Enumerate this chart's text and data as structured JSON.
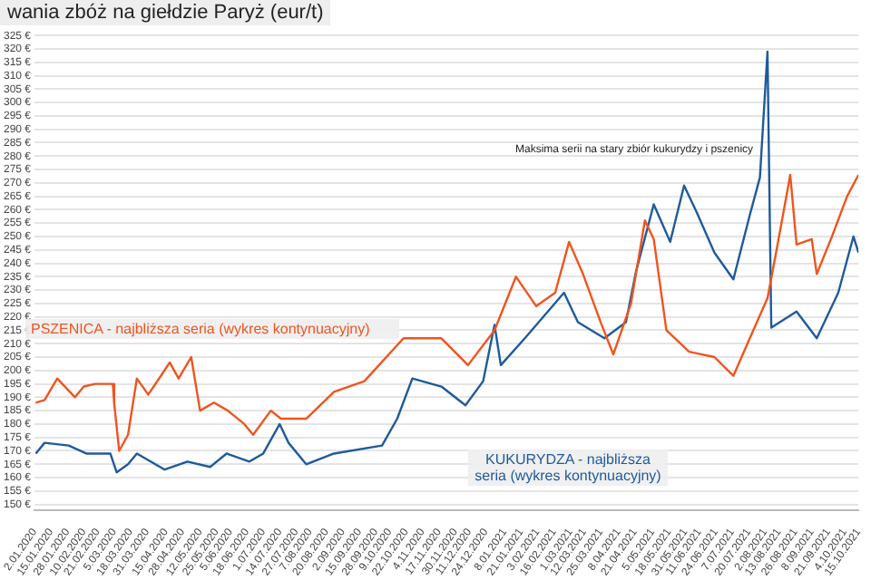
{
  "chart_data": {
    "type": "line",
    "title": "wania zbóż na giełdzie Paryż (eur/t)",
    "xlim": [
      "2020-01-02",
      "2021-10-15"
    ],
    "xticks": [
      {
        "value": "2020-01-02",
        "label": "2.01.2020"
      },
      {
        "value": "2020-01-15",
        "label": "15.01.2020"
      },
      {
        "value": "2020-01-28",
        "label": "28.01.2020"
      },
      {
        "value": "2020-02-10",
        "label": "10.02.2020"
      },
      {
        "value": "2020-02-21",
        "label": "21.02.2020"
      },
      {
        "value": "2020-03-05",
        "label": "5.03.2020"
      },
      {
        "value": "2020-03-18",
        "label": "18.03.2020"
      },
      {
        "value": "2020-03-31",
        "label": "31.03.2020"
      },
      {
        "value": "2020-04-15",
        "label": "15.04.2020"
      },
      {
        "value": "2020-04-28",
        "label": "28.04.2020"
      },
      {
        "value": "2020-05-12",
        "label": "12.05.2020"
      },
      {
        "value": "2020-05-25",
        "label": "25.05.2020"
      },
      {
        "value": "2020-06-05",
        "label": "5.06.2020"
      },
      {
        "value": "2020-06-18",
        "label": "18.06.2020"
      },
      {
        "value": "2020-07-01",
        "label": "1.07.2020"
      },
      {
        "value": "2020-07-14",
        "label": "14.07.2020"
      },
      {
        "value": "2020-07-27",
        "label": "27.07.2020"
      },
      {
        "value": "2020-08-07",
        "label": "7.08.2020"
      },
      {
        "value": "2020-08-20",
        "label": "20.08.2020"
      },
      {
        "value": "2020-09-02",
        "label": "2.09.2020"
      },
      {
        "value": "2020-09-15",
        "label": "15.09.2020"
      },
      {
        "value": "2020-09-28",
        "label": "28.09.2020"
      },
      {
        "value": "2020-10-09",
        "label": "9.10.2020"
      },
      {
        "value": "2020-10-22",
        "label": "22.10.2020"
      },
      {
        "value": "2020-11-04",
        "label": "4.11.2020"
      },
      {
        "value": "2020-11-17",
        "label": "17.11.2020"
      },
      {
        "value": "2020-11-30",
        "label": "30.11.2020"
      },
      {
        "value": "2020-12-11",
        "label": "11.12.2020"
      },
      {
        "value": "2020-12-24",
        "label": "24.12.2020"
      },
      {
        "value": "2021-01-08",
        "label": "8.01.2021"
      },
      {
        "value": "2021-01-21",
        "label": "21.01.2021"
      },
      {
        "value": "2021-02-03",
        "label": "3.02.2021"
      },
      {
        "value": "2021-02-16",
        "label": "16.02.2021"
      },
      {
        "value": "2021-03-01",
        "label": "1.03.2021"
      },
      {
        "value": "2021-03-12",
        "label": "12.03.2021"
      },
      {
        "value": "2021-03-25",
        "label": "25.03.2021"
      },
      {
        "value": "2021-04-08",
        "label": "8.04.2021"
      },
      {
        "value": "2021-04-21",
        "label": "21.04.2021"
      },
      {
        "value": "2021-05-05",
        "label": "5.05.2021"
      },
      {
        "value": "2021-05-18",
        "label": "18.05.2021"
      },
      {
        "value": "2021-05-31",
        "label": "31.05.2021"
      },
      {
        "value": "2021-06-11",
        "label": "11.06.2021"
      },
      {
        "value": "2021-06-24",
        "label": "24.06.2021"
      },
      {
        "value": "2021-07-07",
        "label": "7.07.2021"
      },
      {
        "value": "2021-07-20",
        "label": "20.07.2021"
      },
      {
        "value": "2021-08-02",
        "label": "2.08.2021"
      },
      {
        "value": "2021-08-13",
        "label": "13.08.2021"
      },
      {
        "value": "2021-08-26",
        "label": "26.08.2021"
      },
      {
        "value": "2021-09-08",
        "label": "8.09.2021"
      },
      {
        "value": "2021-09-21",
        "label": "21.09.2021"
      },
      {
        "value": "2021-10-04",
        "label": "4.10.2021"
      },
      {
        "value": "2021-10-15",
        "label": "15.10.2021"
      }
    ],
    "ylim": [
      148,
      325
    ],
    "yticks": [
      {
        "value": 150,
        "label": "150 €"
      },
      {
        "value": 155,
        "label": "155 €"
      },
      {
        "value": 160,
        "label": "160 €"
      },
      {
        "value": 165,
        "label": "165 €"
      },
      {
        "value": 170,
        "label": "170 €"
      },
      {
        "value": 175,
        "label": "175 €"
      },
      {
        "value": 180,
        "label": "180 €"
      },
      {
        "value": 185,
        "label": "185 €"
      },
      {
        "value": 190,
        "label": "190 €"
      },
      {
        "value": 195,
        "label": "195 €"
      },
      {
        "value": 200,
        "label": "200 €"
      },
      {
        "value": 205,
        "label": "205 €"
      },
      {
        "value": 210,
        "label": "210 €"
      },
      {
        "value": 215,
        "label": "215 €"
      },
      {
        "value": 220,
        "label": "220 €"
      },
      {
        "value": 225,
        "label": "225 €"
      },
      {
        "value": 230,
        "label": "230 €"
      },
      {
        "value": 235,
        "label": "235 €"
      },
      {
        "value": 240,
        "label": "240 €"
      },
      {
        "value": 245,
        "label": "245 €"
      },
      {
        "value": 250,
        "label": "250 €"
      },
      {
        "value": 255,
        "label": "255 €"
      },
      {
        "value": 260,
        "label": "260 €"
      },
      {
        "value": 265,
        "label": "265 €"
      },
      {
        "value": 270,
        "label": "270 €"
      },
      {
        "value": 275,
        "label": "275 €"
      },
      {
        "value": 280,
        "label": "280 €"
      },
      {
        "value": 285,
        "label": "285 €"
      },
      {
        "value": 290,
        "label": "290 €"
      },
      {
        "value": 295,
        "label": "295 €"
      },
      {
        "value": 300,
        "label": "300 €"
      },
      {
        "value": 305,
        "label": "305 €"
      },
      {
        "value": 310,
        "label": "310 €"
      },
      {
        "value": 315,
        "label": "315 €"
      },
      {
        "value": 320,
        "label": "320 €"
      },
      {
        "value": 325,
        "label": "325 €"
      }
    ],
    "grid": "y",
    "series": [
      {
        "name": "PSZENICA - najbliższa seria (wykres kontynuacyjny)",
        "color": "#f0541e",
        "x": [
          "2020-01-03",
          "2020-01-10",
          "2020-01-20",
          "2020-02-03",
          "2020-02-10",
          "2020-02-19",
          "2020-03-04",
          "2020-03-05",
          "2020-03-09",
          "2020-03-16",
          "2020-03-23",
          "2020-04-01",
          "2020-04-11",
          "2020-04-18",
          "2020-04-25",
          "2020-05-05",
          "2020-05-12",
          "2020-05-23",
          "2020-06-03",
          "2020-06-16",
          "2020-06-23",
          "2020-07-07",
          "2020-07-15",
          "2020-08-04",
          "2020-08-26",
          "2020-09-19",
          "2020-10-20",
          "2020-11-19",
          "2020-12-10",
          "2020-12-31",
          "2021-01-17",
          "2021-02-02",
          "2021-02-17",
          "2021-02-28",
          "2021-03-11",
          "2021-03-25",
          "2021-04-04",
          "2021-04-18",
          "2021-04-29",
          "2021-05-06",
          "2021-05-16",
          "2021-06-03",
          "2021-06-23",
          "2021-07-08",
          "2021-07-21",
          "2021-08-04",
          "2021-08-12",
          "2021-08-22",
          "2021-08-27",
          "2021-09-08",
          "2021-09-12",
          "2021-09-24",
          "2021-10-06",
          "2021-10-15"
        ],
        "values": [
          188,
          189,
          197,
          190,
          194,
          195,
          195,
          188,
          170,
          176,
          197,
          191,
          198,
          203,
          197,
          205,
          185,
          188,
          185,
          180,
          176,
          185,
          182,
          182,
          192,
          196,
          212,
          212,
          202,
          215,
          235,
          224,
          229,
          248,
          236,
          218,
          206,
          225,
          256,
          249,
          215,
          207,
          205,
          198,
          212,
          227,
          247,
          273,
          247,
          249,
          236,
          250,
          265,
          273
        ]
      },
      {
        "name": "KUKURYDZA - najbliższa seria (wykres kontynuacyjny)",
        "color": "#1e5a9c",
        "x": [
          "2020-01-03",
          "2020-01-10",
          "2020-01-29",
          "2020-02-12",
          "2020-03-02",
          "2020-03-07",
          "2020-03-16",
          "2020-03-23",
          "2020-04-14",
          "2020-05-02",
          "2020-05-20",
          "2020-06-02",
          "2020-06-20",
          "2020-07-01",
          "2020-07-14",
          "2020-07-21",
          "2020-08-04",
          "2020-08-26",
          "2020-10-03",
          "2020-10-15",
          "2020-10-27",
          "2020-11-19",
          "2020-12-08",
          "2020-12-22",
          "2020-12-31",
          "2021-01-05",
          "2021-01-24",
          "2021-02-24",
          "2021-03-07",
          "2021-03-28",
          "2021-04-14",
          "2021-04-22",
          "2021-05-06",
          "2021-05-19",
          "2021-05-30",
          "2021-06-09",
          "2021-06-23",
          "2021-07-08",
          "2021-07-21",
          "2021-07-29",
          "2021-08-04",
          "2021-08-07",
          "2021-08-27",
          "2021-09-12",
          "2021-09-29",
          "2021-10-11",
          "2021-10-15"
        ],
        "values": [
          169,
          173,
          172,
          169,
          169,
          162,
          165,
          169,
          163,
          166,
          164,
          169,
          166,
          169,
          180,
          173,
          165,
          169,
          172,
          182,
          197,
          194,
          187,
          196,
          217,
          202,
          212,
          229,
          218,
          212,
          218,
          237,
          262,
          248,
          269,
          259,
          244,
          234,
          258,
          272,
          319,
          216,
          222,
          212,
          229,
          250,
          244
        ]
      }
    ],
    "annotations": [
      "Maksima serii na stary zbiór kukurydzy i pszenicy"
    ]
  }
}
